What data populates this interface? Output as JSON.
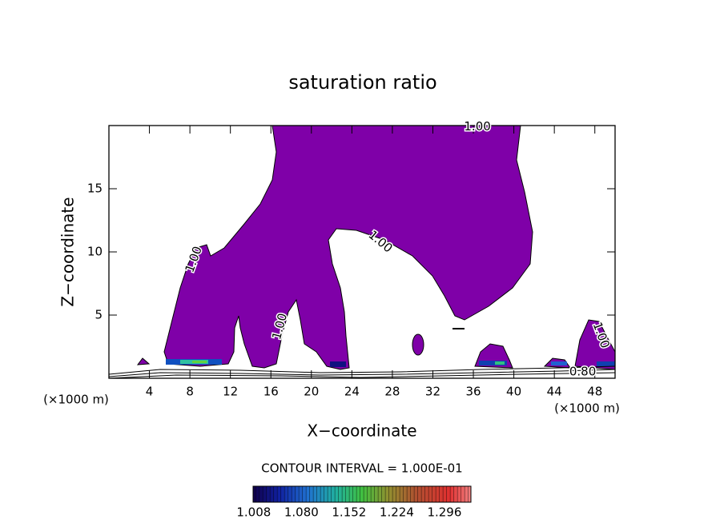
{
  "chart_data": {
    "type": "contour",
    "title": "saturation ratio",
    "x_label": "X−coordinate",
    "y_label": "Z−coordinate",
    "x_unit_label": "(×1000 m)",
    "xlim": [
      0,
      50
    ],
    "ylim": [
      0,
      20
    ],
    "xticks": [
      4,
      8,
      12,
      16,
      20,
      24,
      28,
      32,
      36,
      40,
      44,
      48
    ],
    "yticks": [
      5,
      10,
      15
    ],
    "fill_color": "#7f00a8",
    "contour_labels": [
      {
        "value": 1.0,
        "label": "1.00",
        "x": 36.4,
        "z": 19.9
      },
      {
        "value": 1.0,
        "label": "1.00",
        "x": 8.4,
        "z": 9.4
      },
      {
        "value": 1.0,
        "label": "1.00",
        "x": 26.8,
        "z": 10.8
      },
      {
        "value": 1.0,
        "label": "1.00",
        "x": 16.9,
        "z": 4.1
      },
      {
        "value": 1.0,
        "label": "1.00",
        "x": 48.6,
        "z": 3.4
      },
      {
        "value": 0.8,
        "label": "0.80",
        "x": 46.8,
        "z": 0.5
      }
    ],
    "contour_interval_label": "CONTOUR INTERVAL = 1.000E-01",
    "colorbar": {
      "lim": [
        1.007,
        1.336
      ],
      "ticks": [
        1.008,
        {
          "value": 1.08,
          "label": "1.080"
        },
        1.152,
        1.224,
        1.296
      ]
    }
  }
}
